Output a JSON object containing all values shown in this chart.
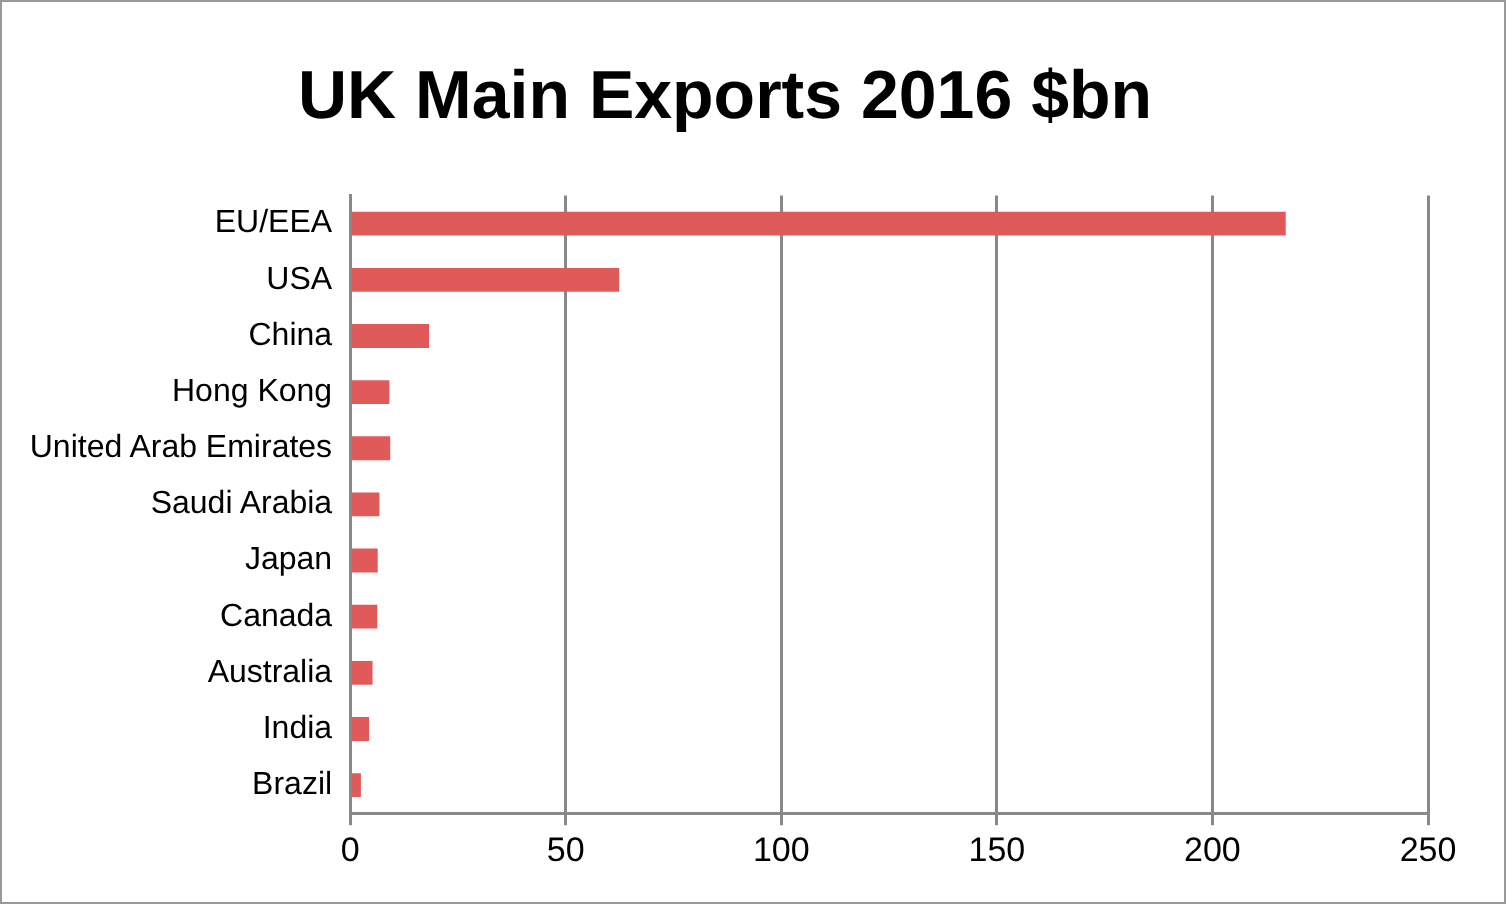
{
  "chart_data": {
    "type": "bar",
    "orientation": "horizontal",
    "title": "UK Main Exports 2016 $bn",
    "categories": [
      "EU/EEA",
      "USA",
      "China",
      "Hong Kong",
      "United Arab Emirates",
      "Saudi Arabia",
      "Japan",
      "Canada",
      "Australia",
      "India",
      "Brazil"
    ],
    "values": [
      217,
      62.4,
      18.3,
      9.1,
      9.3,
      6.8,
      6.4,
      6.3,
      5.2,
      4.4,
      2.5
    ],
    "color": "#e05a5a",
    "xlim": [
      0,
      250
    ],
    "xticks": [
      0,
      50,
      100,
      150,
      200,
      250
    ],
    "grid": "x",
    "legend": false
  }
}
